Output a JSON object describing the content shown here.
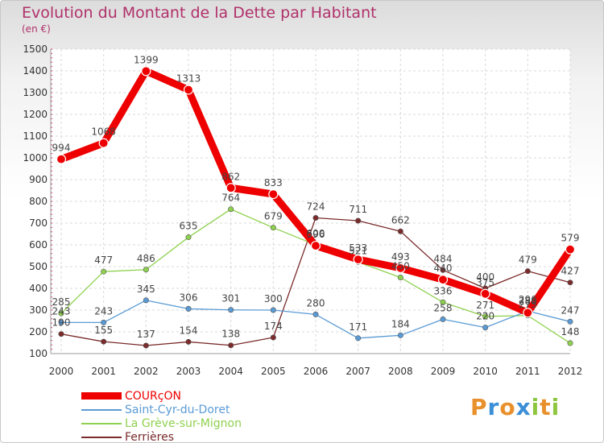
{
  "title": "Evolution du Montant de la Dette par Habitant",
  "subtitle": "(en €)",
  "logo": [
    "P",
    "r",
    "o",
    "x",
    "i",
    "t",
    "i"
  ],
  "logo_colors": [
    "#e8912c",
    "#3a8fd6",
    "#e8912c",
    "#3a8fd6",
    "#8dc63f",
    "#e8912c",
    "#8dc63f"
  ],
  "chart_data": {
    "type": "line",
    "title": "Evolution du Montant de la Dette par Habitant",
    "ylabel": "(en €)",
    "xlabel": "",
    "x": [
      "2000",
      "2001",
      "2002",
      "2003",
      "2004",
      "2005",
      "2006",
      "2007",
      "2008",
      "2009",
      "2010",
      "2011",
      "2012"
    ],
    "ylim": [
      100,
      1500
    ],
    "yticks": [
      100,
      200,
      300,
      400,
      500,
      600,
      700,
      800,
      900,
      1000,
      1100,
      1200,
      1300,
      1400,
      1500
    ],
    "grid": true,
    "legend_position": "bottom-left",
    "series": [
      {
        "name": "COURçON",
        "color": "#ee0000",
        "values": [
          994,
          1068,
          1399,
          1313,
          862,
          833,
          596,
          533,
          493,
          440,
          375,
          288,
          579
        ],
        "labels": [
          "994",
          "1068",
          "1399",
          "1313",
          "862",
          "833",
          "596",
          "533",
          "493",
          "440",
          "375",
          "288",
          "579"
        ]
      },
      {
        "name": "Saint-Cyr-du-Doret",
        "color": "#5b9bd5",
        "values": [
          243,
          243,
          345,
          306,
          301,
          300,
          280,
          171,
          184,
          258,
          220,
          296,
          247
        ],
        "labels": [
          "243",
          "243",
          "345",
          "306",
          "301",
          "300",
          "280",
          "171",
          "184",
          "258",
          "220",
          "296",
          "247"
        ]
      },
      {
        "name": "La Grève-sur-Mignon",
        "color": "#8fd14f",
        "values": [
          285,
          477,
          486,
          635,
          764,
          679,
          600,
          521,
          450,
          336,
          271,
          275,
          148
        ],
        "labels": [
          "285",
          "477",
          "486",
          "635",
          "764",
          "679",
          "600",
          "521",
          "450",
          "336",
          "271",
          "275",
          "148"
        ]
      },
      {
        "name": "Ferrières",
        "color": "#7b2b2b",
        "values": [
          190,
          155,
          137,
          154,
          138,
          174,
          724,
          711,
          662,
          484,
          400,
          479,
          427
        ],
        "labels": [
          "190",
          "155",
          "137",
          "154",
          "138",
          "174",
          "724",
          "711",
          "662",
          "484",
          "400",
          "479",
          "427"
        ]
      }
    ]
  }
}
